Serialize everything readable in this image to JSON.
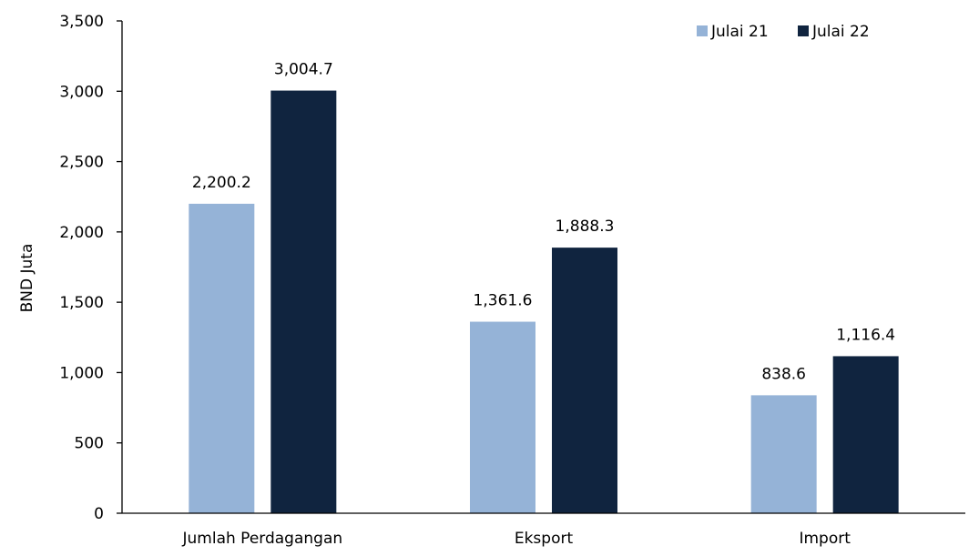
{
  "chart_data": {
    "type": "bar",
    "title": "",
    "xlabel": "",
    "ylabel": "BND Juta",
    "ylim": [
      0,
      3500
    ],
    "yticks": [
      0,
      500,
      1000,
      1500,
      2000,
      2500,
      3000,
      3500
    ],
    "ytick_labels": [
      "0",
      "500",
      "1,000",
      "1,500",
      "2,000",
      "2,500",
      "3,000",
      "3,500"
    ],
    "grid": false,
    "legend_position": "top-right",
    "categories": [
      "Jumlah Perdagangan",
      "Eksport",
      "Import"
    ],
    "series": [
      {
        "name": "Julai 21",
        "color": "#95b3d7",
        "values": [
          2200.2,
          1361.6,
          838.6
        ],
        "labels": [
          "2,200.2",
          "1,361.6",
          "838.6"
        ]
      },
      {
        "name": "Julai 22",
        "color": "#10243f",
        "values": [
          3004.7,
          1888.3,
          1116.4
        ],
        "labels": [
          "3,004.7",
          "1,888.3",
          "1,116.4"
        ]
      }
    ]
  }
}
